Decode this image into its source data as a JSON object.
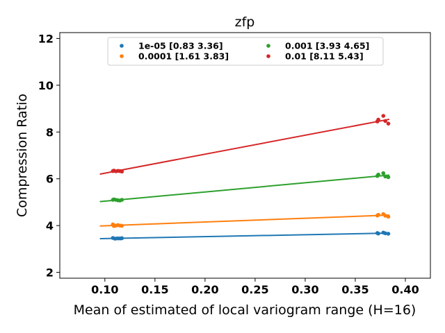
{
  "chart_data": {
    "type": "scatter",
    "title": "zfp",
    "xlabel": "Mean of estimated of local variogram range (H=16)",
    "ylabel": "Compression Ratio",
    "xlim": [
      0.055,
      0.425
    ],
    "ylim": [
      1.75,
      12.25
    ],
    "xticks": [
      0.1,
      0.15,
      0.2,
      0.25,
      0.3,
      0.35,
      0.4
    ],
    "xtick_labels": [
      "0.10",
      "0.15",
      "0.20",
      "0.25",
      "0.30",
      "0.35",
      "0.40"
    ],
    "yticks": [
      2,
      4,
      6,
      8,
      10,
      12
    ],
    "ytick_labels": [
      "2",
      "4",
      "6",
      "8",
      "10",
      "12"
    ],
    "grid": false,
    "legend_position": "top-center",
    "fit_x_range": [
      0.095,
      0.384
    ],
    "series": [
      {
        "name": "1e-05 [0.83 3.36]",
        "color": "#1f77b4",
        "fit": {
          "slope": 0.83,
          "intercept": 3.36
        },
        "points": [
          {
            "x": 0.108,
            "y": 3.47
          },
          {
            "x": 0.11,
            "y": 3.44
          },
          {
            "x": 0.112,
            "y": 3.45
          },
          {
            "x": 0.114,
            "y": 3.45
          },
          {
            "x": 0.116,
            "y": 3.45
          },
          {
            "x": 0.117,
            "y": 3.46
          },
          {
            "x": 0.372,
            "y": 3.68
          },
          {
            "x": 0.373,
            "y": 3.66
          },
          {
            "x": 0.378,
            "y": 3.7
          },
          {
            "x": 0.38,
            "y": 3.67
          },
          {
            "x": 0.383,
            "y": 3.65
          }
        ]
      },
      {
        "name": "0.0001 [1.61 3.83]",
        "color": "#ff7f0e",
        "fit": {
          "slope": 1.61,
          "intercept": 3.83
        },
        "points": [
          {
            "x": 0.108,
            "y": 4.05
          },
          {
            "x": 0.109,
            "y": 3.98
          },
          {
            "x": 0.111,
            "y": 4.0
          },
          {
            "x": 0.113,
            "y": 4.02
          },
          {
            "x": 0.115,
            "y": 4.0
          },
          {
            "x": 0.117,
            "y": 3.99
          },
          {
            "x": 0.372,
            "y": 4.43
          },
          {
            "x": 0.373,
            "y": 4.46
          },
          {
            "x": 0.378,
            "y": 4.49
          },
          {
            "x": 0.38,
            "y": 4.42
          },
          {
            "x": 0.383,
            "y": 4.38
          }
        ]
      },
      {
        "name": "0.001 [3.93 4.65]",
        "color": "#2ca02c",
        "fit": {
          "slope": 3.93,
          "intercept": 4.65
        },
        "points": [
          {
            "x": 0.108,
            "y": 5.1
          },
          {
            "x": 0.109,
            "y": 5.12
          },
          {
            "x": 0.111,
            "y": 5.1
          },
          {
            "x": 0.113,
            "y": 5.08
          },
          {
            "x": 0.115,
            "y": 5.07
          },
          {
            "x": 0.117,
            "y": 5.1
          },
          {
            "x": 0.372,
            "y": 6.12
          },
          {
            "x": 0.373,
            "y": 6.18
          },
          {
            "x": 0.378,
            "y": 6.24
          },
          {
            "x": 0.38,
            "y": 6.1
          },
          {
            "x": 0.383,
            "y": 6.07
          }
        ]
      },
      {
        "name": "0.01 [8.11 5.43]",
        "color": "#d62728",
        "fit": {
          "slope": 8.11,
          "intercept": 5.43
        },
        "points": [
          {
            "x": 0.108,
            "y": 6.33
          },
          {
            "x": 0.109,
            "y": 6.35
          },
          {
            "x": 0.111,
            "y": 6.32
          },
          {
            "x": 0.113,
            "y": 6.34
          },
          {
            "x": 0.115,
            "y": 6.33
          },
          {
            "x": 0.117,
            "y": 6.31
          },
          {
            "x": 0.372,
            "y": 8.45
          },
          {
            "x": 0.373,
            "y": 8.53
          },
          {
            "x": 0.378,
            "y": 8.69
          },
          {
            "x": 0.38,
            "y": 8.47
          },
          {
            "x": 0.383,
            "y": 8.36
          }
        ]
      }
    ]
  }
}
